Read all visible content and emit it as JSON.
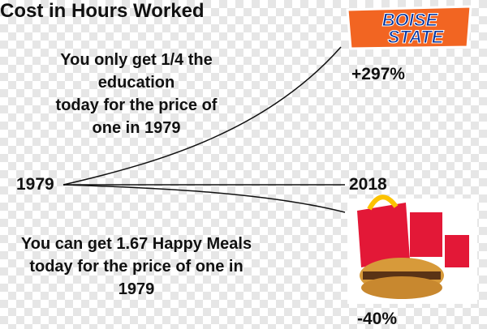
{
  "title": "Cost in Hours Worked",
  "axis": {
    "start": "1979",
    "end": "2018"
  },
  "upper": {
    "lines": [
      "You only get 1/4 the",
      "education",
      "today for the price of",
      "one in 1979"
    ],
    "change": "+297%",
    "logo": [
      "BOISE",
      "STATE"
    ]
  },
  "lower": {
    "lines": [
      "You can get 1.67 Happy Meals",
      "today for the price of one in",
      "1979"
    ],
    "change": "-40%"
  }
}
